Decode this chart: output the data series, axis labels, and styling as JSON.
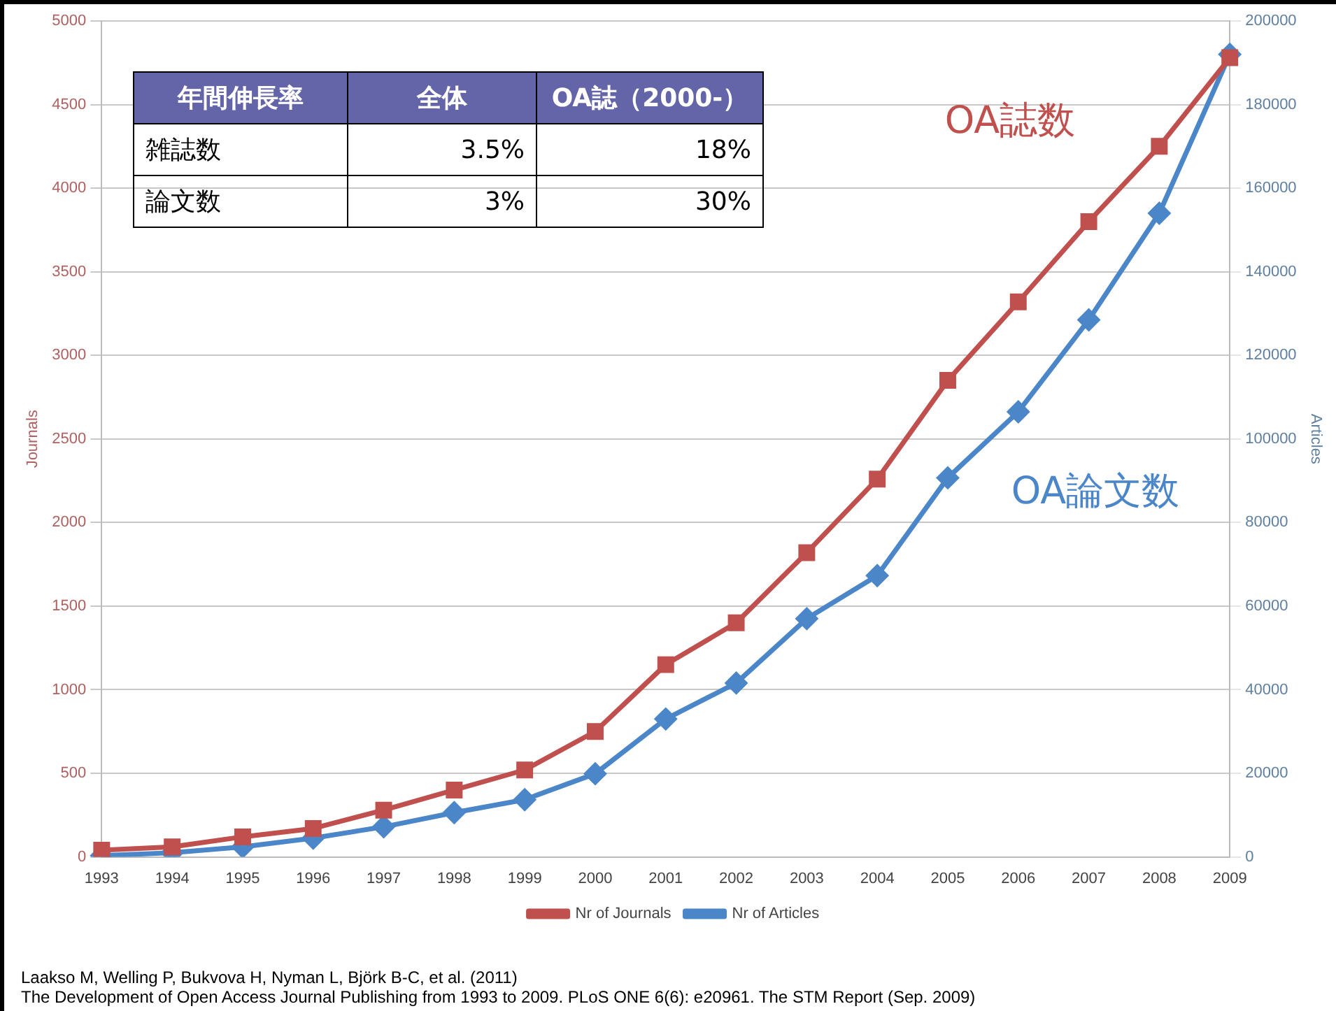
{
  "chart_data": {
    "type": "line",
    "ylabel": "Journals",
    "y2label": "Articles",
    "categories": [
      "1993",
      "1994",
      "1995",
      "1996",
      "1997",
      "1998",
      "1999",
      "2000",
      "2001",
      "2002",
      "2003",
      "2004",
      "2005",
      "2006",
      "2007",
      "2008",
      "2009"
    ],
    "series": [
      {
        "name": "Nr of Articles",
        "color": "#4a86c8",
        "axis": "y2",
        "marker": "diamond",
        "values": [
          300,
          1000,
          2400,
          4500,
          7200,
          10600,
          13700,
          19900,
          33000,
          41600,
          57000,
          67300,
          90700,
          106500,
          128500,
          154000,
          192000
        ]
      },
      {
        "name": "Nr of Journals",
        "color": "#c0504d",
        "axis": "y",
        "marker": "square",
        "values": [
          40,
          60,
          120,
          170,
          280,
          400,
          520,
          750,
          1150,
          1400,
          1820,
          2260,
          2850,
          3320,
          3800,
          4250,
          4780
        ]
      }
    ],
    "ylim": [
      0,
      5000
    ],
    "yticks": [
      0,
      500,
      1000,
      1500,
      2000,
      2500,
      3000,
      3500,
      4000,
      4500,
      5000
    ],
    "y2lim": [
      0,
      200000
    ],
    "y2ticks": [
      0,
      20000,
      40000,
      60000,
      80000,
      100000,
      120000,
      140000,
      160000,
      180000,
      200000
    ],
    "grid": "y",
    "legend": "bottom",
    "line_style": "solid",
    "annotations": [
      "年間伸長率",
      "全体",
      "OA誌（2000-）",
      "雑誌数",
      "3.5%",
      "18%",
      "論文数",
      "3%",
      "30%",
      "OA誌数",
      "OA論文数",
      "Laakso M, Welling P, Bukvova H, Nyman L, Björk B-C, et al. (2011)",
      "The Development of Open Access Journal Publishing from 1993 to 2009. PLoS ONE 6(6): e20961. The STM Report (Sep. 2009)"
    ]
  }
}
